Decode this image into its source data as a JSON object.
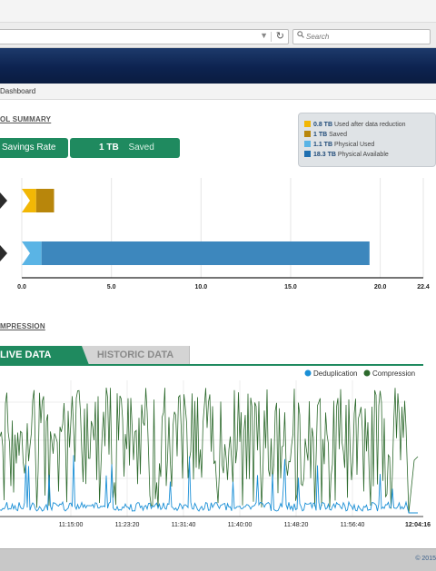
{
  "browser": {
    "search_placeholder": "Search"
  },
  "breadcrumb": "Dashboard",
  "summary": {
    "title": "OL SUMMARY",
    "savings_rate_label": "Savings Rate",
    "saved_value": "1 TB",
    "saved_label": "Saved"
  },
  "legend": [
    {
      "value": "0.8 TB",
      "label": "Used after data reduction",
      "color": "#f2b705"
    },
    {
      "value": "1 TB",
      "label": "Saved",
      "color": "#b8860b"
    },
    {
      "value": "1.1 TB",
      "label": "Physical Used",
      "color": "#5ab4e5"
    },
    {
      "value": "18.3 TB",
      "label": "Physical Available",
      "color": "#1f6fb0"
    }
  ],
  "capacity_chart": {
    "type": "bar",
    "xlim": [
      0,
      22.4
    ],
    "x_ticks": [
      "0.0",
      "5.0",
      "10.0",
      "15.0",
      "20.0",
      "22.4"
    ],
    "rows": [
      {
        "segments": [
          {
            "series": "Used after data reduction",
            "value": 0.8,
            "color": "#f2b705"
          },
          {
            "series": "Saved",
            "value": 1.0,
            "color": "#b8860b"
          }
        ]
      },
      {
        "segments": [
          {
            "series": "Physical Used",
            "value": 1.1,
            "color": "#5ab4e5"
          },
          {
            "series": "Physical Available",
            "value": 18.3,
            "color": "#3d87bd"
          }
        ]
      }
    ]
  },
  "compression_section": {
    "title": "MPRESSION"
  },
  "tabs": {
    "live": "LIVE DATA",
    "historic": "HISTORIC DATA"
  },
  "chart_data": {
    "type": "line",
    "series": [
      {
        "name": "Deduplication",
        "color": "#1a8fd6"
      },
      {
        "name": "Compression",
        "color": "#2d6a2d"
      }
    ],
    "x_ticks": [
      "11:15:00",
      "11:23:20",
      "11:31:40",
      "11:40:00",
      "11:48:20",
      "11:56:40",
      "12:04:16"
    ],
    "grid": true
  },
  "footer": {
    "copyright": "© 2015"
  }
}
